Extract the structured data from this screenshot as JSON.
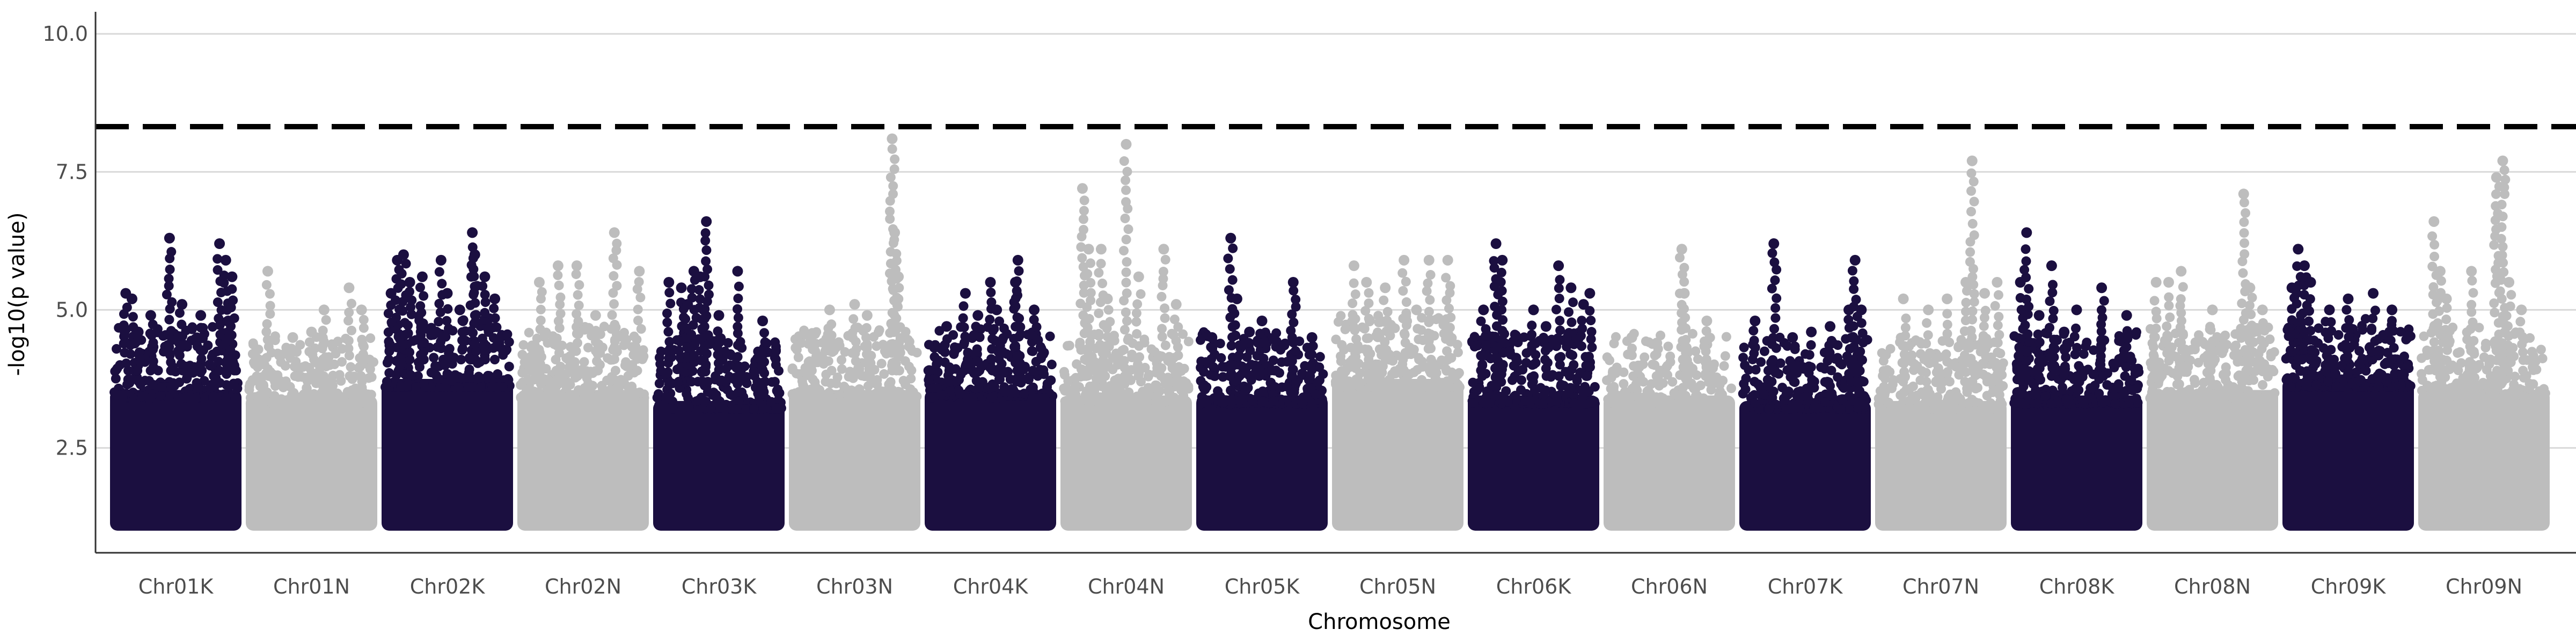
{
  "chart_data": {
    "type": "scatter",
    "subtype": "manhattan",
    "title": "",
    "xlabel": "Chromosome",
    "ylabel": "-log10(p value)",
    "ylim": [
      0.6,
      10.4
    ],
    "yticks": [
      2.5,
      5.0,
      7.5,
      10.0
    ],
    "ytick_labels": [
      "2.5",
      "5.0",
      "7.5",
      "10.0"
    ],
    "grid": "horizontal major only",
    "legend": "none",
    "significance_threshold": 8.32,
    "threshold_style": "black dashed line",
    "colors": {
      "dark": "#1b0f40",
      "light": "#bdbdbd",
      "threshold": "#000000",
      "grid": "#d9d9d9"
    },
    "chromosomes": [
      {
        "name": "Chr01K",
        "color": "dark",
        "base_max": 3.9,
        "outliers": [
          [
            0.1,
            5.3
          ],
          [
            0.15,
            5.2
          ],
          [
            0.45,
            6.3
          ],
          [
            0.55,
            5.1
          ],
          [
            0.85,
            6.2
          ],
          [
            0.9,
            5.9
          ],
          [
            0.95,
            5.6
          ],
          [
            0.92,
            4.8
          ],
          [
            0.3,
            4.9
          ],
          [
            0.2,
            4.6
          ],
          [
            0.7,
            4.9
          ]
        ]
      },
      {
        "name": "Chr01N",
        "color": "light",
        "base_max": 3.8,
        "outliers": [
          [
            0.15,
            5.7
          ],
          [
            0.6,
            5.0
          ],
          [
            0.8,
            5.4
          ],
          [
            0.9,
            5.0
          ],
          [
            0.5,
            4.6
          ],
          [
            0.35,
            4.5
          ]
        ]
      },
      {
        "name": "Chr02K",
        "color": "dark",
        "base_max": 4.1,
        "outliers": [
          [
            0.1,
            5.9
          ],
          [
            0.15,
            6.0
          ],
          [
            0.2,
            5.5
          ],
          [
            0.3,
            5.6
          ],
          [
            0.45,
            5.9
          ],
          [
            0.6,
            5.0
          ],
          [
            0.7,
            6.4
          ],
          [
            0.72,
            6.0
          ],
          [
            0.8,
            5.6
          ],
          [
            0.88,
            5.2
          ],
          [
            0.05,
            5.3
          ],
          [
            0.5,
            5.3
          ]
        ]
      },
      {
        "name": "Chr02N",
        "color": "light",
        "base_max": 3.9,
        "outliers": [
          [
            0.15,
            5.5
          ],
          [
            0.3,
            5.8
          ],
          [
            0.45,
            5.8
          ],
          [
            0.75,
            6.4
          ],
          [
            0.95,
            5.7
          ],
          [
            0.6,
            4.9
          ]
        ]
      },
      {
        "name": "Chr03K",
        "color": "dark",
        "base_max": 3.7,
        "outliers": [
          [
            0.1,
            5.5
          ],
          [
            0.2,
            5.4
          ],
          [
            0.25,
            5.1
          ],
          [
            0.3,
            5.7
          ],
          [
            0.35,
            5.6
          ],
          [
            0.38,
            5.0
          ],
          [
            0.4,
            6.6
          ],
          [
            0.65,
            5.7
          ],
          [
            0.85,
            4.8
          ],
          [
            0.5,
            4.9
          ]
        ]
      },
      {
        "name": "Chr03N",
        "color": "light",
        "base_max": 3.9,
        "outliers": [
          [
            0.3,
            5.0
          ],
          [
            0.5,
            5.1
          ],
          [
            0.8,
            8.1
          ],
          [
            0.82,
            6.4
          ],
          [
            0.85,
            5.6
          ],
          [
            0.6,
            4.9
          ],
          [
            0.15,
            4.5
          ]
        ]
      },
      {
        "name": "Chr04K",
        "color": "dark",
        "base_max": 3.9,
        "outliers": [
          [
            0.15,
            4.7
          ],
          [
            0.3,
            5.3
          ],
          [
            0.5,
            5.5
          ],
          [
            0.55,
            5.0
          ],
          [
            0.7,
            5.5
          ],
          [
            0.72,
            5.9
          ],
          [
            0.85,
            5.0
          ],
          [
            0.4,
            4.9
          ]
        ]
      },
      {
        "name": "Chr04N",
        "color": "light",
        "base_max": 3.8,
        "outliers": [
          [
            0.15,
            7.2
          ],
          [
            0.2,
            6.1
          ],
          [
            0.3,
            6.1
          ],
          [
            0.5,
            8.0
          ],
          [
            0.6,
            5.6
          ],
          [
            0.8,
            6.1
          ],
          [
            0.9,
            5.1
          ],
          [
            0.35,
            5.2
          ]
        ]
      },
      {
        "name": "Chr05K",
        "color": "dark",
        "base_max": 3.8,
        "outliers": [
          [
            0.1,
            4.5
          ],
          [
            0.25,
            6.3
          ],
          [
            0.3,
            5.2
          ],
          [
            0.5,
            4.8
          ],
          [
            0.75,
            5.5
          ],
          [
            0.9,
            4.5
          ],
          [
            0.4,
            4.6
          ]
        ]
      },
      {
        "name": "Chr05N",
        "color": "light",
        "base_max": 4.1,
        "outliers": [
          [
            0.15,
            5.8
          ],
          [
            0.25,
            5.5
          ],
          [
            0.4,
            5.4
          ],
          [
            0.55,
            5.9
          ],
          [
            0.75,
            5.9
          ],
          [
            0.9,
            5.9
          ],
          [
            0.65,
            5.0
          ]
        ]
      },
      {
        "name": "Chr06K",
        "color": "dark",
        "base_max": 3.8,
        "outliers": [
          [
            0.1,
            5.0
          ],
          [
            0.2,
            6.2
          ],
          [
            0.25,
            5.9
          ],
          [
            0.5,
            5.0
          ],
          [
            0.7,
            5.8
          ],
          [
            0.8,
            5.4
          ],
          [
            0.9,
            5.1
          ],
          [
            0.95,
            5.3
          ],
          [
            0.6,
            4.7
          ]
        ]
      },
      {
        "name": "Chr06N",
        "color": "light",
        "base_max": 3.8,
        "outliers": [
          [
            0.2,
            4.5
          ],
          [
            0.6,
            6.1
          ],
          [
            0.62,
            5.3
          ],
          [
            0.8,
            4.8
          ],
          [
            0.4,
            4.4
          ]
        ]
      },
      {
        "name": "Chr07K",
        "color": "dark",
        "base_max": 3.7,
        "outliers": [
          [
            0.1,
            4.8
          ],
          [
            0.25,
            6.2
          ],
          [
            0.4,
            4.5
          ],
          [
            0.55,
            4.6
          ],
          [
            0.85,
            5.0
          ],
          [
            0.9,
            5.9
          ],
          [
            0.95,
            5.0
          ],
          [
            0.7,
            4.7
          ]
        ]
      },
      {
        "name": "Chr07N",
        "color": "light",
        "base_max": 3.7,
        "outliers": [
          [
            0.2,
            5.2
          ],
          [
            0.4,
            5.0
          ],
          [
            0.55,
            5.2
          ],
          [
            0.7,
            5.5
          ],
          [
            0.75,
            7.7
          ],
          [
            0.85,
            5.3
          ],
          [
            0.95,
            5.5
          ]
        ]
      },
      {
        "name": "Chr08K",
        "color": "dark",
        "base_max": 3.8,
        "outliers": [
          [
            0.05,
            5.5
          ],
          [
            0.1,
            6.4
          ],
          [
            0.2,
            4.9
          ],
          [
            0.3,
            5.8
          ],
          [
            0.5,
            5.0
          ],
          [
            0.7,
            5.4
          ],
          [
            0.9,
            4.9
          ],
          [
            0.4,
            4.6
          ]
        ]
      },
      {
        "name": "Chr08N",
        "color": "light",
        "base_max": 3.9,
        "outliers": [
          [
            0.05,
            5.5
          ],
          [
            0.15,
            5.5
          ],
          [
            0.25,
            5.7
          ],
          [
            0.5,
            5.0
          ],
          [
            0.75,
            7.1
          ],
          [
            0.8,
            5.4
          ],
          [
            0.9,
            5.0
          ]
        ]
      },
      {
        "name": "Chr09K",
        "color": "dark",
        "base_max": 4.1,
        "outliers": [
          [
            0.05,
            5.4
          ],
          [
            0.1,
            6.1
          ],
          [
            0.15,
            5.8
          ],
          [
            0.2,
            5.5
          ],
          [
            0.35,
            5.0
          ],
          [
            0.5,
            5.2
          ],
          [
            0.7,
            5.3
          ],
          [
            0.85,
            5.0
          ]
        ]
      },
      {
        "name": "Chr09N",
        "color": "light",
        "base_max": 3.9,
        "outliers": [
          [
            0.1,
            6.6
          ],
          [
            0.15,
            5.7
          ],
          [
            0.2,
            5.2
          ],
          [
            0.4,
            5.7
          ],
          [
            0.6,
            7.4
          ],
          [
            0.65,
            7.7
          ],
          [
            0.8,
            5.0
          ],
          [
            0.7,
            5.5
          ]
        ]
      }
    ]
  }
}
